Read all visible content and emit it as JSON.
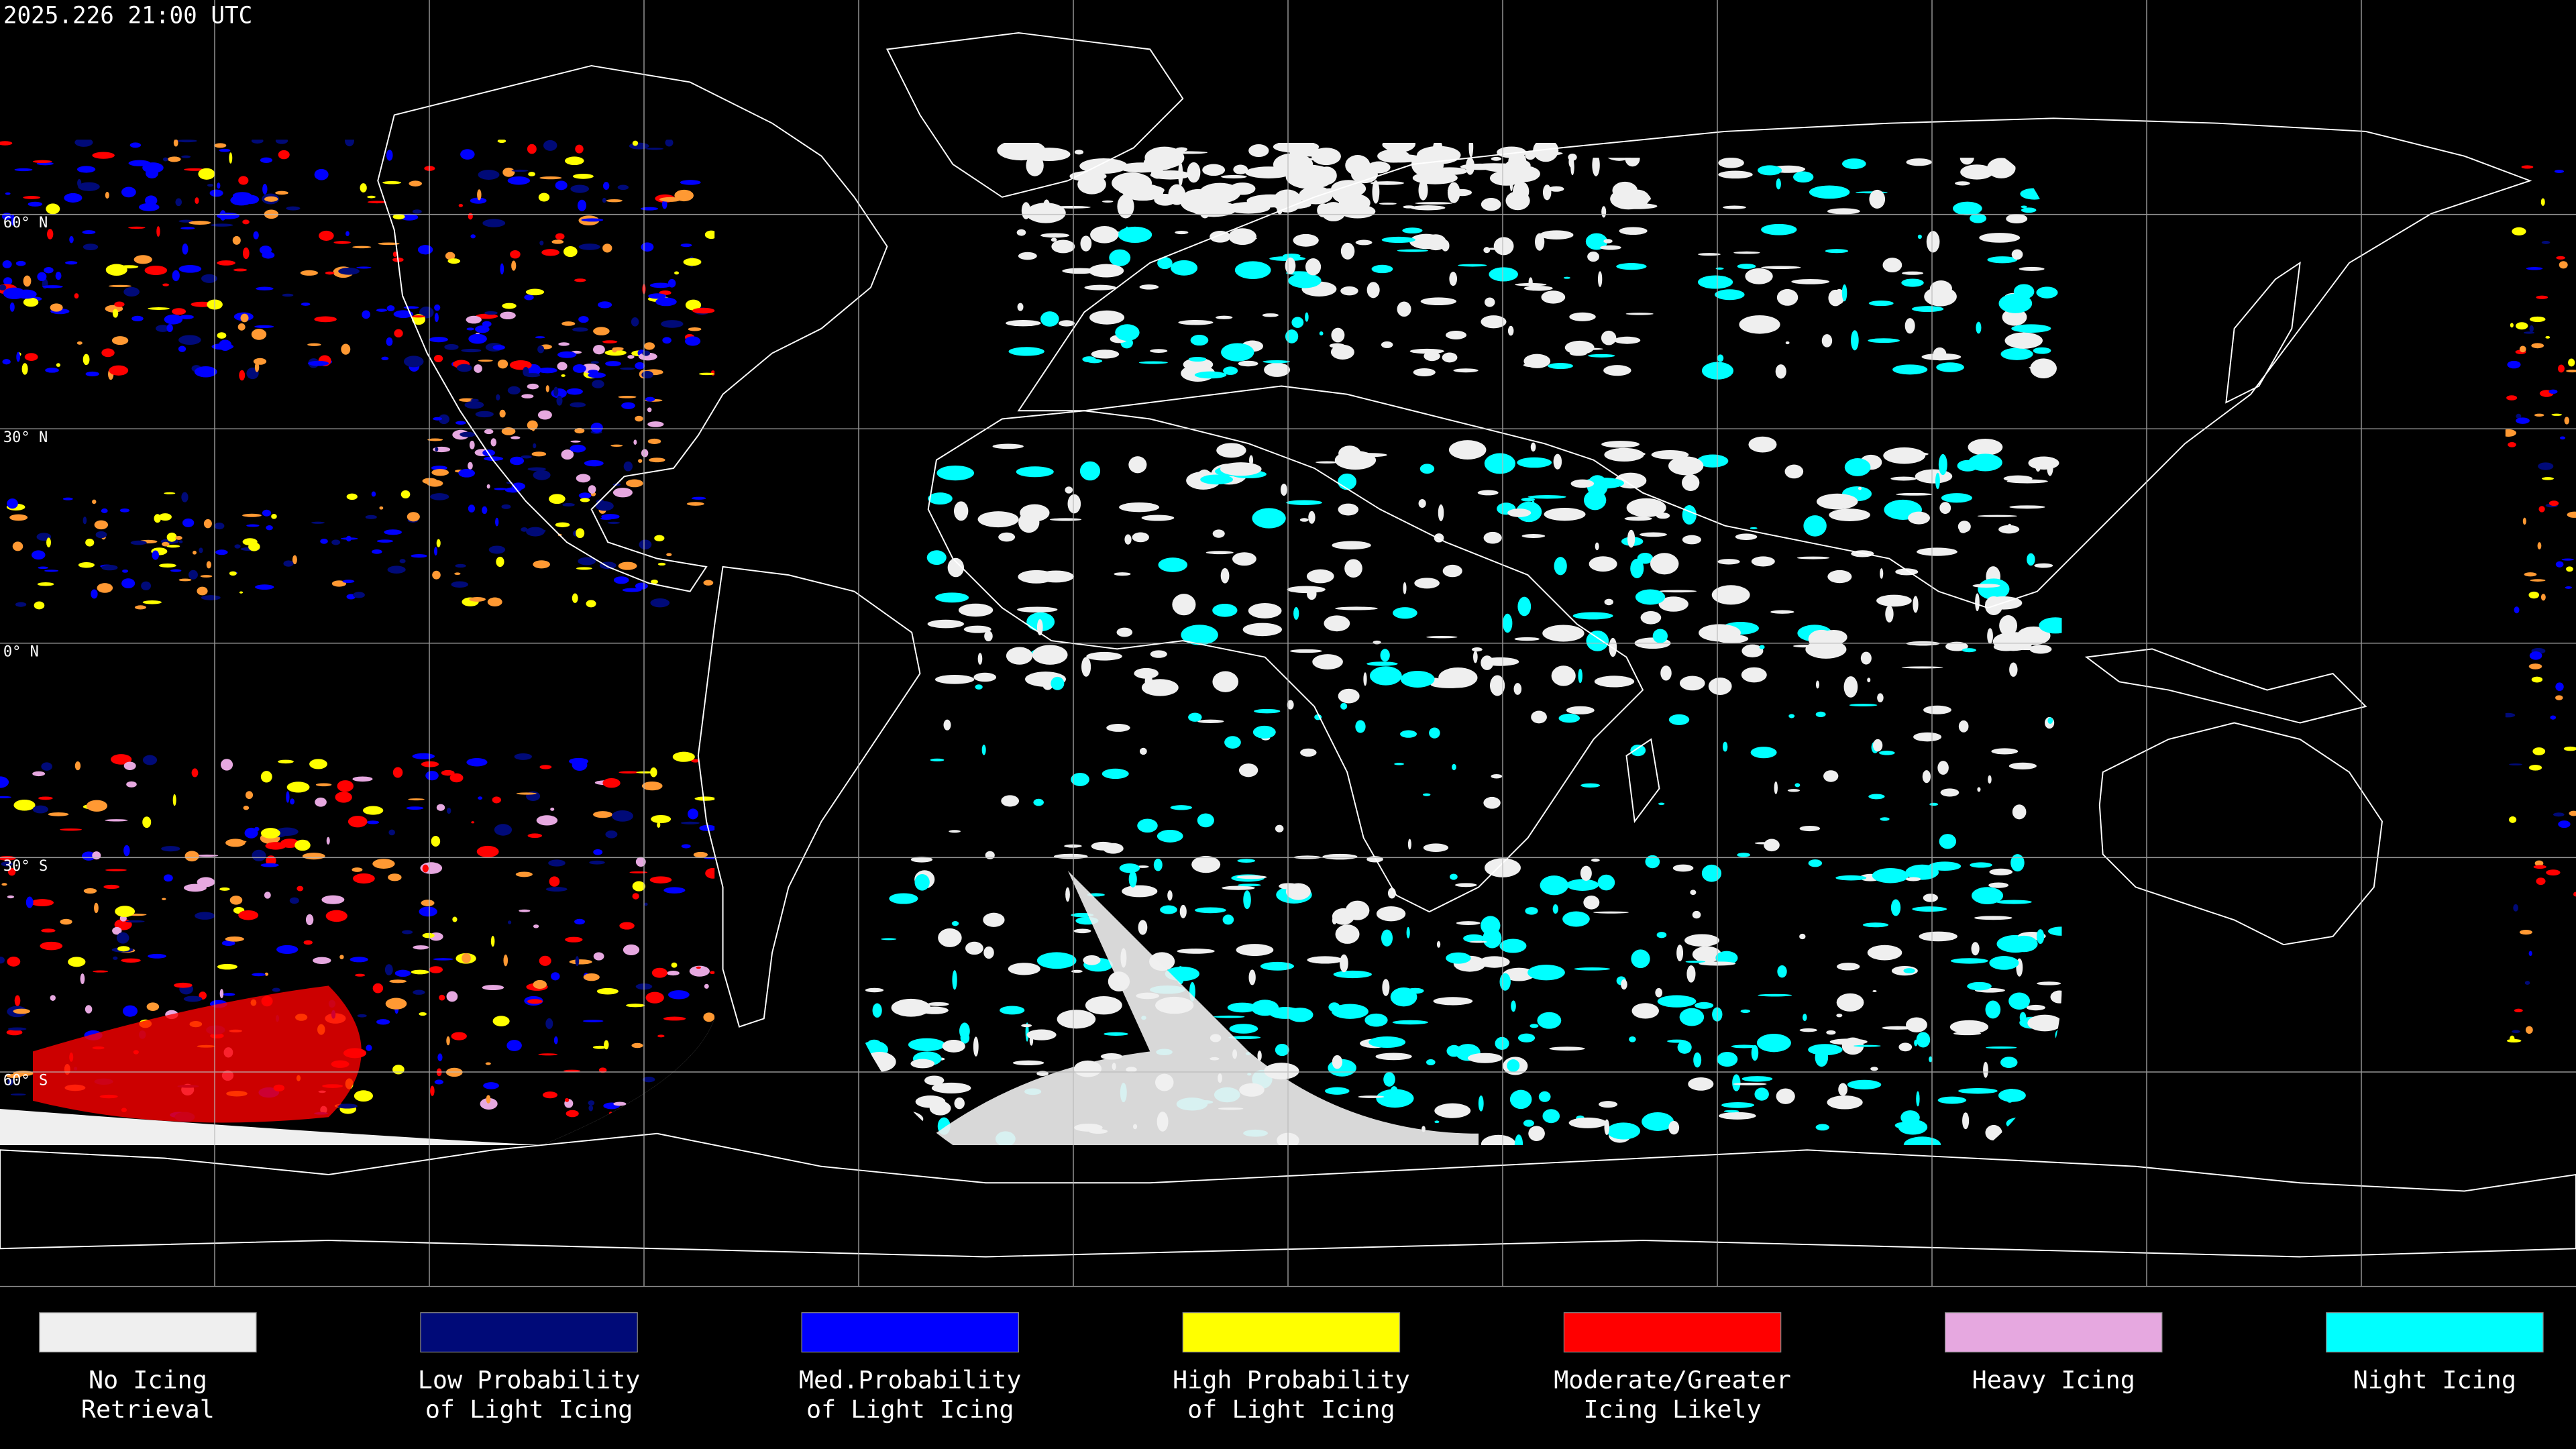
{
  "header": {
    "timestamp": "2025.226 21:00 UTC"
  },
  "map": {
    "latitude_labels": [
      "60° N",
      "30° N",
      "0° N",
      "30° S",
      "60° S"
    ]
  },
  "legend": {
    "items": [
      {
        "label_lines": [
          "No Icing",
          "Retrieval"
        ],
        "color": "#efefef"
      },
      {
        "label_lines": [
          "Low Probability",
          "of Light Icing"
        ],
        "color": "#000a78"
      },
      {
        "label_lines": [
          "Med.Probability",
          "of Light Icing"
        ],
        "color": "#0000ff"
      },
      {
        "label_lines": [
          "High Probability",
          "of Light Icing"
        ],
        "color": "#ffff00"
      },
      {
        "label_lines": [
          "Moderate/Greater",
          "Icing Likely"
        ],
        "color": "#ff0000"
      },
      {
        "label_lines": [
          "Heavy Icing"
        ],
        "color": "#e6a8e0"
      },
      {
        "label_lines": [
          "Night Icing"
        ],
        "color": "#00ffff"
      }
    ]
  }
}
